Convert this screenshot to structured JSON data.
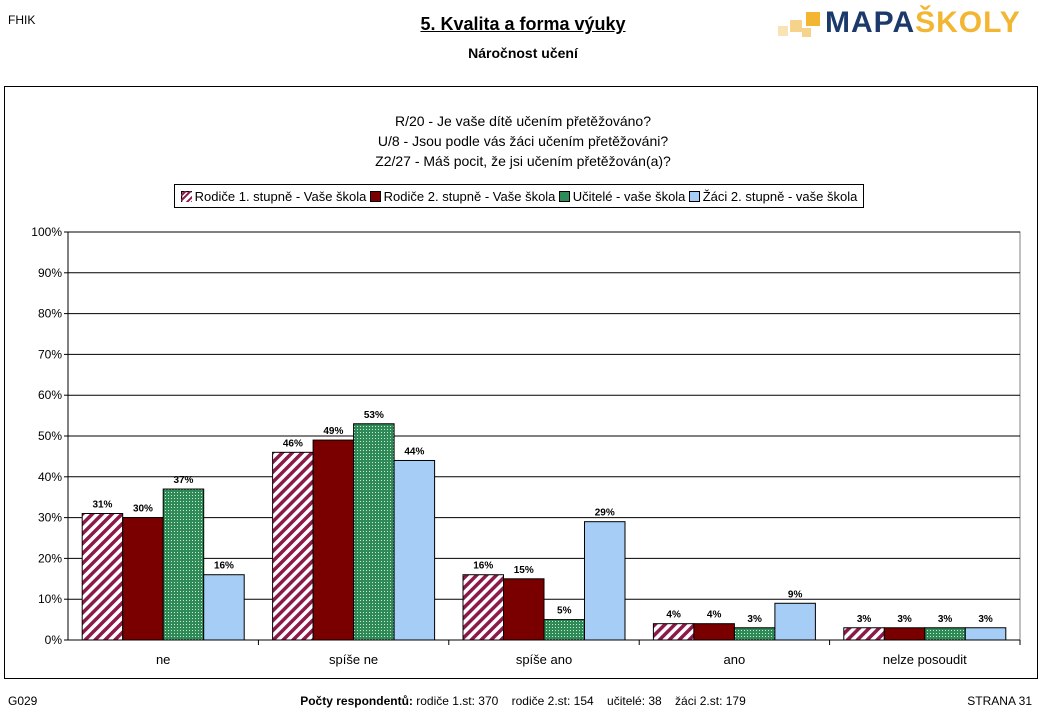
{
  "header": {
    "school_code": "FHIK",
    "title": "5. Kvalita a forma výuky",
    "subtitle": "Náročnost učení",
    "logo_part1": "MAPA",
    "logo_part2": "ŠKOLY"
  },
  "colors": {
    "s1": "#8b1a4a",
    "s2": "#7a0000",
    "s3": "#2e8b57",
    "s4": "#a6cdf5",
    "logo_blue": "#1b3a6b",
    "logo_gold": "#f2b632"
  },
  "chart_data": {
    "type": "bar",
    "title_lines": [
      "R/20 - Je vaše dítě učením přetěžováno?",
      "U/8 - Jsou podle vás žáci učením přetěžováni?",
      "Z2/27 - Máš pocit, že jsi učením přetěžován(a)?"
    ],
    "categories": [
      "ne",
      "spíše ne",
      "spíše ano",
      "ano",
      "nelze posoudit"
    ],
    "series": [
      {
        "name": "Rodiče 1. stupně - Vaše škola",
        "values": [
          31,
          46,
          16,
          4,
          3
        ],
        "pattern": "diagonal-stripes"
      },
      {
        "name": "Rodiče 2. stupně - Vaše škola",
        "values": [
          30,
          49,
          15,
          4,
          3
        ],
        "pattern": "solid"
      },
      {
        "name": "Učitelé - vaše škola",
        "values": [
          37,
          53,
          5,
          3,
          3
        ],
        "pattern": "dotted"
      },
      {
        "name": "Žáci 2. stupně - vaše škola",
        "values": [
          16,
          44,
          29,
          9,
          3
        ],
        "pattern": "solid"
      }
    ],
    "y_ticks": [
      "0%",
      "10%",
      "20%",
      "30%",
      "40%",
      "50%",
      "60%",
      "70%",
      "80%",
      "90%",
      "100%"
    ],
    "ylim": [
      0,
      100
    ],
    "unit": "%",
    "grid": true,
    "legend_position": "top"
  },
  "footer": {
    "code": "G029",
    "counts_label": "Počty respondentů:",
    "counts": "rodiče 1.st: 370    rodiče 2.st: 154    učitelé: 38    žáci 2.st: 179",
    "page": "STRANA 31"
  }
}
